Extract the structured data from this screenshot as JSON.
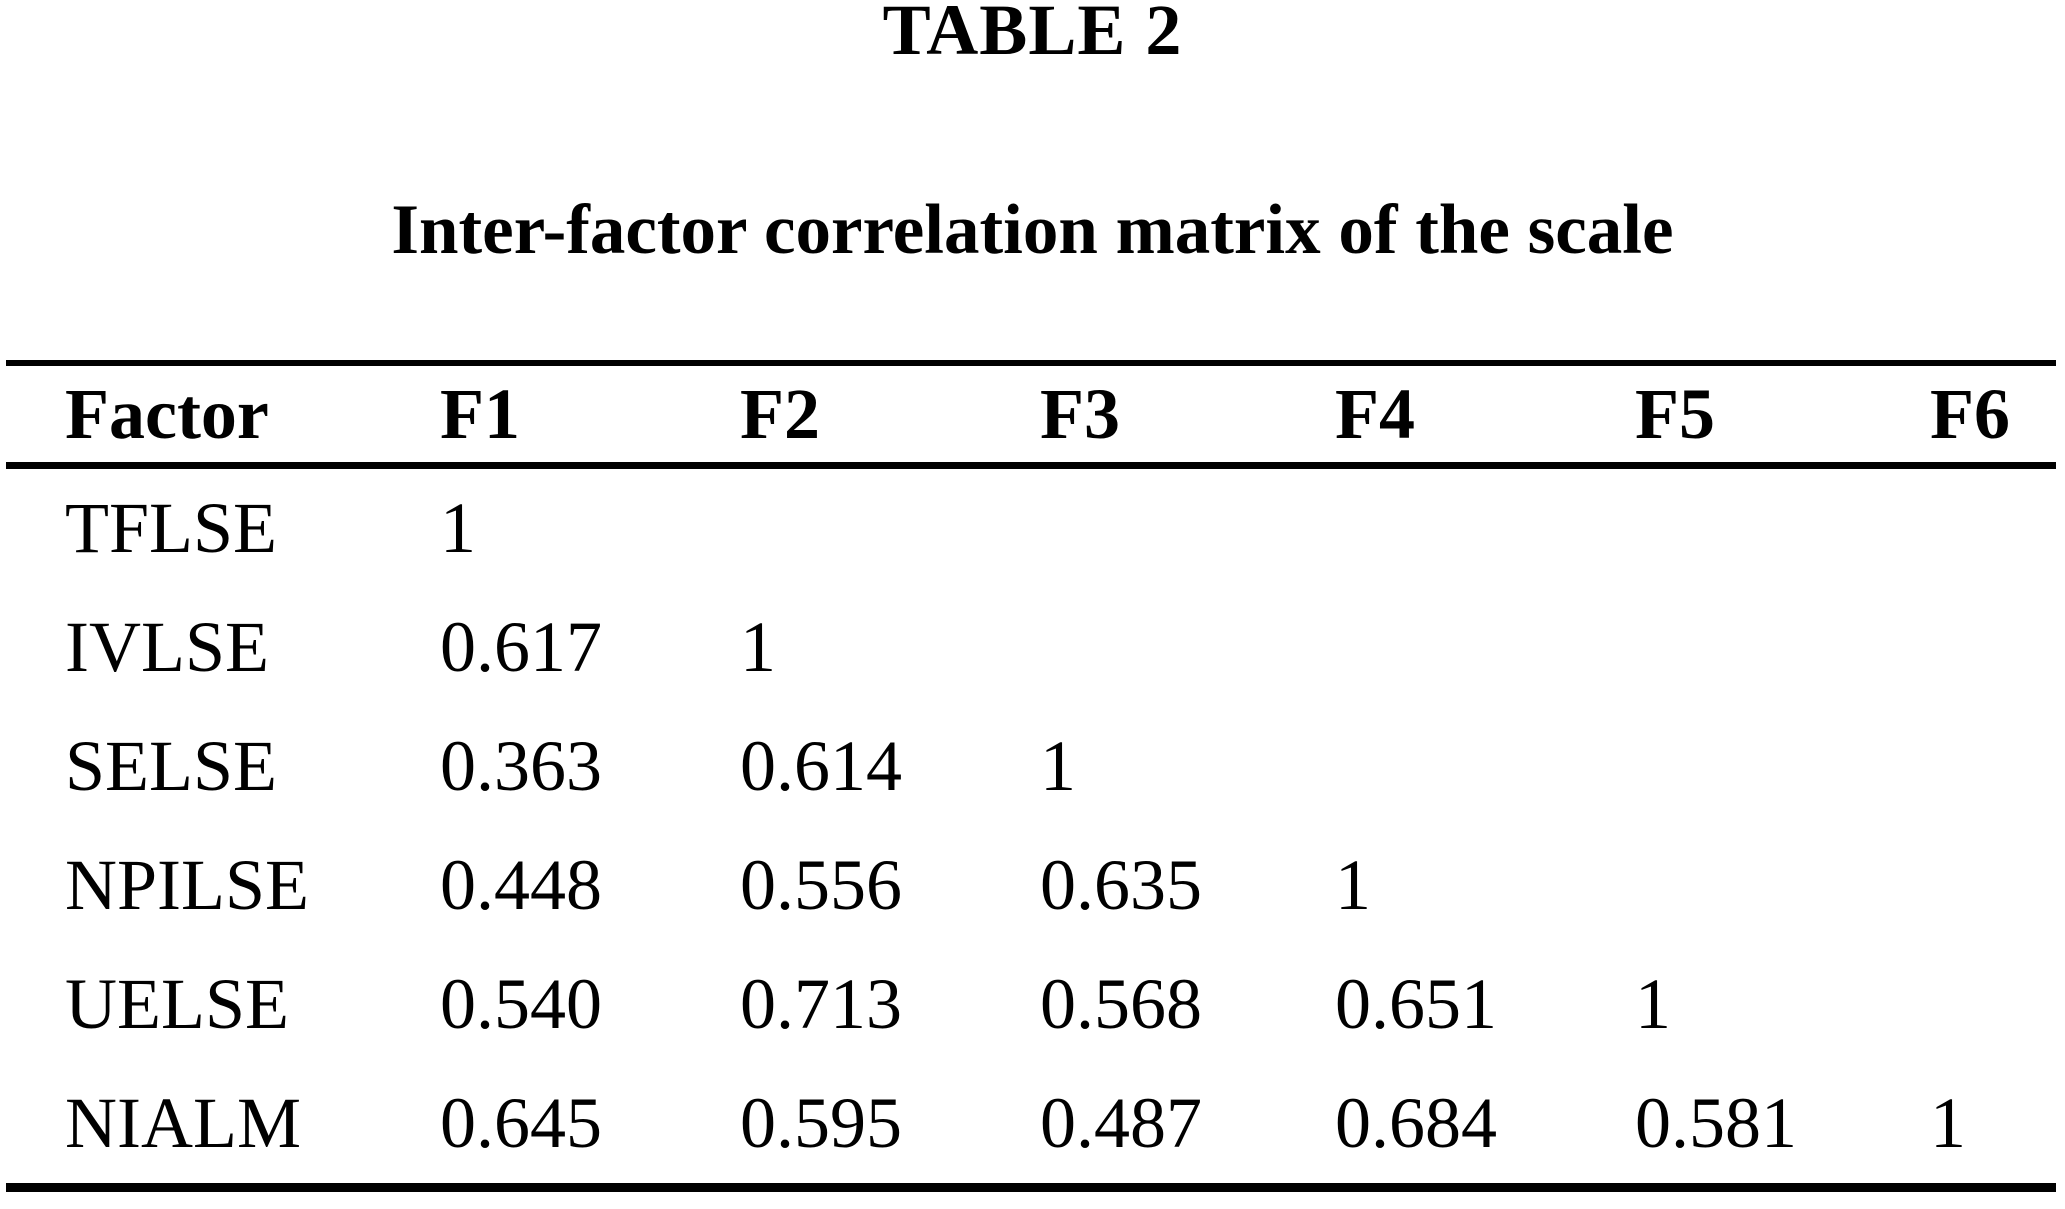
{
  "table": {
    "label": "TABLE 2",
    "caption": "Inter-factor correlation matrix of the scale",
    "columns": [
      "Factor",
      "F1",
      "F2",
      "F3",
      "F4",
      "F5",
      "F6"
    ],
    "rows": [
      {
        "factor": "TFLSE",
        "values": [
          "1",
          "",
          "",
          "",
          "",
          ""
        ]
      },
      {
        "factor": "IVLSE",
        "values": [
          "0.617",
          "1",
          "",
          "",
          "",
          ""
        ]
      },
      {
        "factor": "SELSE",
        "values": [
          "0.363",
          "0.614",
          "1",
          "",
          "",
          ""
        ]
      },
      {
        "factor": "NPILSE",
        "values": [
          "0.448",
          "0.556",
          "0.635",
          "1",
          "",
          ""
        ]
      },
      {
        "factor": "UELSE",
        "values": [
          "0.540",
          "0.713",
          "0.568",
          "0.651",
          "1",
          ""
        ]
      },
      {
        "factor": "NIALM",
        "values": [
          "0.645",
          "0.595",
          "0.487",
          "0.684",
          "0.581",
          "1"
        ]
      }
    ]
  }
}
